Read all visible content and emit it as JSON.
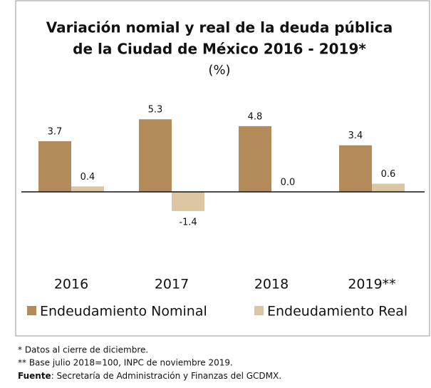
{
  "chart_data": {
    "type": "bar",
    "title": [
      "Variación nomial y real de la deuda pública",
      "de la Ciudad de México 2016 - 2019*"
    ],
    "subtitle": "(%)",
    "categories": [
      "2016",
      "2017",
      "2018",
      "2019**"
    ],
    "series": [
      {
        "name": "Endeudamiento Nominal",
        "color": "#b38b5b",
        "values": [
          3.7,
          5.3,
          4.8,
          3.4
        ],
        "value_labels": [
          "3.7",
          "5.3",
          "4.8",
          "3.4"
        ]
      },
      {
        "name": "Endeudamiento Real",
        "color": "#dcc6a2",
        "values": [
          0.4,
          -1.4,
          0,
          0.6
        ],
        "value_labels": [
          "0.4",
          "-1.4",
          "0.0",
          "0.6"
        ]
      }
    ],
    "ylim": [
      -6,
      7
    ],
    "legend": "bottom"
  },
  "notes": [
    "* Datos al cierre de diciembre.",
    "** Base julio 2018=100, INPC de noviembre 2019."
  ],
  "source": {
    "label": "Fuente",
    "text": ": Secretaría de Administración y Finanzas del GCDMX."
  }
}
